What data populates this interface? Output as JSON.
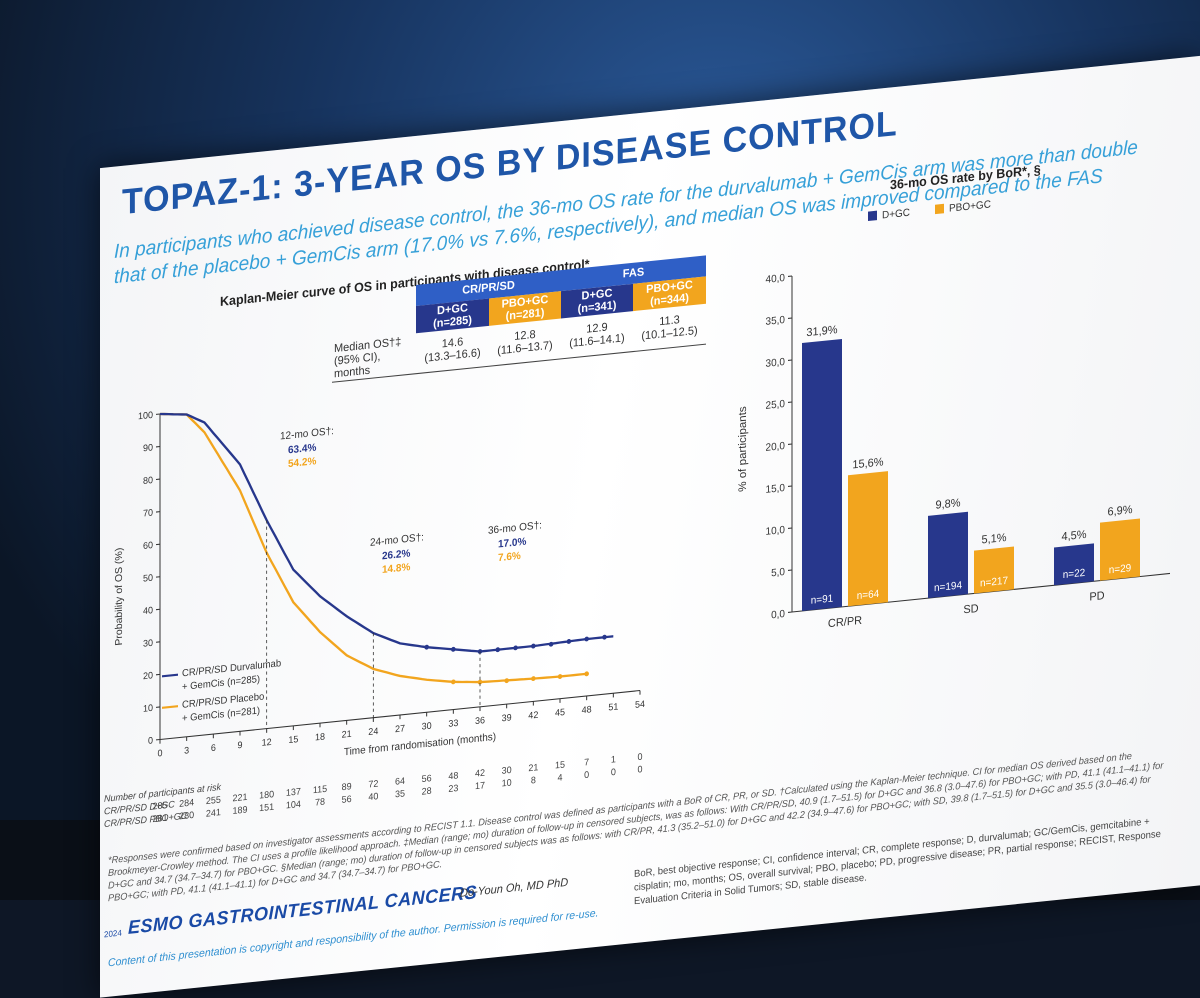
{
  "slide": {
    "title": "TOPAZ-1: 3-YEAR OS BY DISEASE CONTROL",
    "subtitle": "In participants who achieved disease control, the 36-mo OS rate for the durvalumab + GemCis arm was more than double that of the placebo + GemCis arm (17.0% vs 7.6%, respectively), and median OS was improved compared to the FAS"
  },
  "km": {
    "caption": "Kaplan-Meier curve of OS in participants with disease control*",
    "ylabel": "Probability of OS (%)",
    "xlabel": "Time from randomisation (months)",
    "y_ticks": [
      "0",
      "10",
      "20",
      "30",
      "40",
      "50",
      "60",
      "70",
      "80",
      "90",
      "100"
    ],
    "x_ticks": [
      "0",
      "3",
      "6",
      "9",
      "12",
      "15",
      "18",
      "21",
      "24",
      "27",
      "30",
      "33",
      "36",
      "39",
      "42",
      "45",
      "48",
      "51",
      "54"
    ],
    "ann12_label": "12-mo OS†:",
    "ann12_dgc": "63.4%",
    "ann12_pbo": "54.2%",
    "ann24_label": "24-mo OS†:",
    "ann24_dgc": "26.2%",
    "ann24_pbo": "14.8%",
    "ann36_label": "36-mo OS†:",
    "ann36_dgc": "17.0%",
    "ann36_pbo": "7.6%",
    "legend_dgc_1": "CR/PR/SD Durvalumab",
    "legend_dgc_2": "+ GemCis (n=285)",
    "legend_pbo_1": "CR/PR/SD Placebo",
    "legend_pbo_2": "+ GemCis (n=281)",
    "risk_header": "Number of participants at risk",
    "risk_dgc_label": "CR/PR/SD D+GC",
    "risk_pbo_label": "CR/PR/SD PBO+GC",
    "risk_dgc": [
      "285",
      "284",
      "255",
      "221",
      "180",
      "137",
      "115",
      "89",
      "72",
      "64",
      "56",
      "48",
      "42",
      "30",
      "21",
      "15",
      "7",
      "1",
      "0"
    ],
    "risk_pbo": [
      "281",
      "280",
      "241",
      "189",
      "151",
      "104",
      "78",
      "56",
      "40",
      "35",
      "28",
      "23",
      "17",
      "10",
      "8",
      "4",
      "0",
      "0",
      "0"
    ]
  },
  "median_table": {
    "group1": "CR/PR/SD",
    "group2": "FAS",
    "col1": "D+GC",
    "col1n": "(n=285)",
    "col2": "PBO+GC",
    "col2n": "(n=281)",
    "col3": "D+GC",
    "col3n": "(n=341)",
    "col4": "PBO+GC",
    "col4n": "(n=344)",
    "row_label_1": "Median OS†‡",
    "row_label_2": "(95% CI),",
    "row_label_3": "months",
    "v1": "14.6",
    "ci1": "(13.3–16.6)",
    "v2": "12.8",
    "ci2": "(11.6–13.7)",
    "v3": "12.9",
    "ci3": "(11.6–14.1)",
    "v4": "11.3",
    "ci4": "(10.1–12.5)"
  },
  "chart_data": {
    "type": "bar",
    "title": "36-mo OS rate by BoR*, §",
    "ylabel": "% of participants",
    "ylim": [
      0,
      40
    ],
    "y_ticks": [
      "0,0",
      "5,0",
      "10,0",
      "15,0",
      "20,0",
      "25,0",
      "30,0",
      "35,0",
      "40,0"
    ],
    "categories": [
      "CR/PR",
      "SD",
      "PD"
    ],
    "series": [
      {
        "name": "D+GC",
        "values": [
          31.9,
          9.8,
          4.5
        ],
        "labels": [
          "31,9%",
          "9,8%",
          "4,5%"
        ],
        "n": [
          "n=91",
          "n=194",
          "n=22"
        ]
      },
      {
        "name": "PBO+GC",
        "values": [
          15.6,
          5.1,
          6.9
        ],
        "labels": [
          "15,6%",
          "5,1%",
          "6,9%"
        ],
        "n": [
          "n=64",
          "n=217",
          "n=29"
        ]
      }
    ],
    "legend_placement": "top"
  },
  "colors": {
    "dgc": "#27378c",
    "pbo": "#f2a51e",
    "title": "#1f56a8",
    "subtitle": "#36a0d8",
    "header_blue": "#2f5fc6"
  },
  "footer": {
    "footnote": "*Responses were confirmed based on investigator assessments according to RECIST 1.1. Disease control was defined as participants with a BoR of CR, PR, or SD. †Calculated using the Kaplan-Meier technique. CI for median OS derived based on the Brookmeyer-Crowley method. The CI uses a profile likelihood approach. ‡Median (range; mo) duration of follow-up in censored subjects, was as follows: With CR/PR/SD, 40.9 (1.7–51.5) for D+GC and 36.8 (3.0–47.6) for PBO+GC; with PD, 41.1 (41.1–41.1) for D+GC and 34.7 (34.7–34.7) for PBO+GC. §Median (range; mo) duration of follow-up in censored subjects was as follows: with CR/PR, 41.3 (35.2–51.0) for D+GC and 42.2 (34.9–47.6) for PBO+GC; with SD, 39.8 (1.7–51.5) for D+GC and 35.5 (3.0–46.4) for PBO+GC; with PD, 41.1 (41.1–41.1) for D+GC and 34.7 (34.7–34.7) for PBO+GC.",
    "year": "2024",
    "brand": "ESMO GASTROINTESTINAL CANCERS",
    "presenter": "Do-Youn Oh, MD PhD",
    "copyright": "Content of this presentation is copyright and responsibility of the author. Permission is required for re-use.",
    "abbreviations": "BoR, best objective response; CI, confidence interval; CR, complete response; D, durvalumab; GC/GemCis, gemcitabine + cisplatin; mo, months; OS, overall survival; PBO, placebo; PD, progressive disease; PR, partial response; RECIST, Response Evaluation Criteria in Solid Tumors; SD, stable disease."
  }
}
